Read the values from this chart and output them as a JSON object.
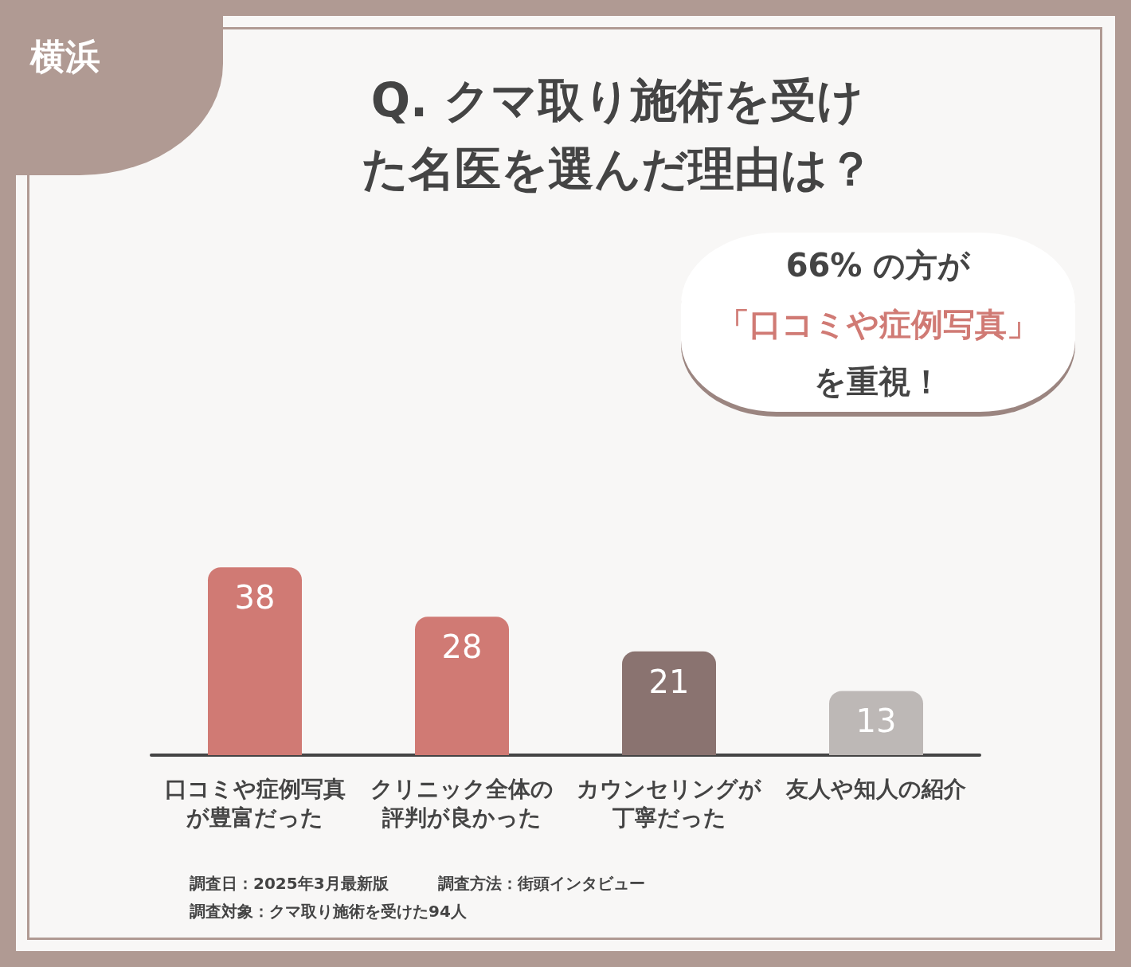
{
  "chart_data": {
    "type": "bar",
    "title": "Q. クマ取り施術を受けた名医を選んだ理由は？",
    "categories": [
      "口コミや症例写真が豊富だった",
      "クリニック全体の評判が良かった",
      "カウンセリングが丁寧だった",
      "友人や知人の紹介"
    ],
    "values": [
      38,
      28,
      21,
      13
    ],
    "colors": [
      "#d07a74",
      "#d07a74",
      "#8a7370",
      "#bdb8b6"
    ],
    "data_labels": true,
    "annotations": [
      "横浜",
      "66% の方が",
      "「口コミや症例写真」",
      "を重視！",
      "調査日：2025年3月最新版",
      "調査方法：街頭インタビュー",
      "調査対象：クマ取り施術を受けた94人"
    ]
  }
}
